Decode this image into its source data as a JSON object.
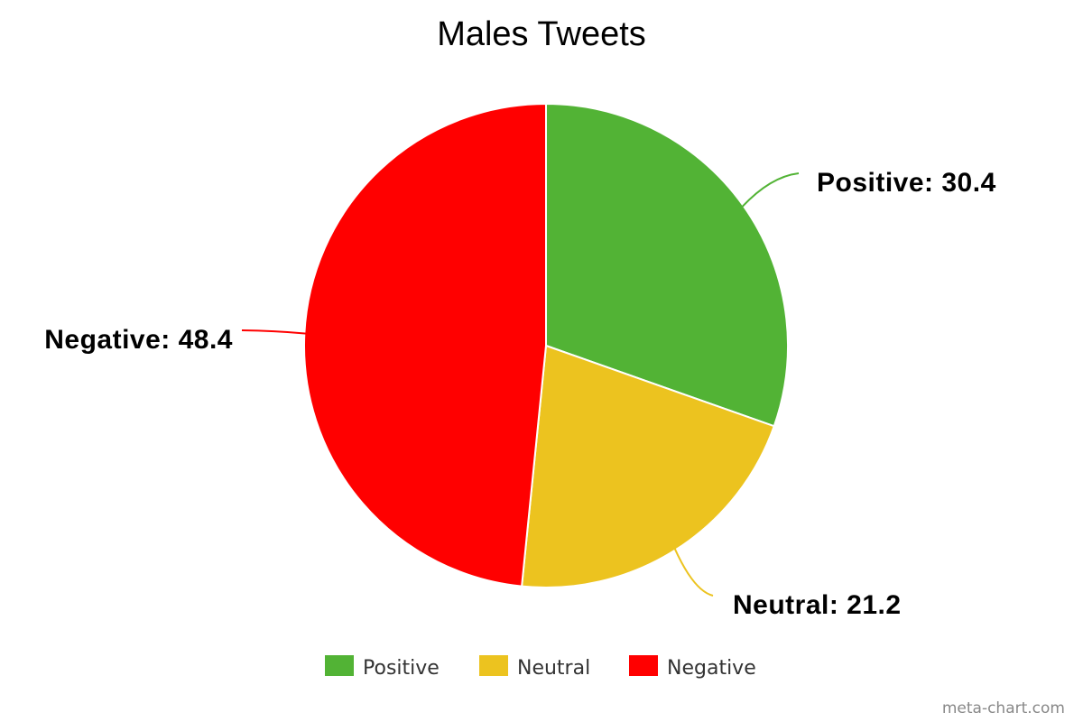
{
  "chart_data": {
    "type": "pie",
    "title": "Males Tweets",
    "slices": [
      {
        "name": "Positive",
        "value": 30.4,
        "color": "#52b335",
        "label": "Positive: 30.4"
      },
      {
        "name": "Neutral",
        "value": 21.2,
        "color": "#ecc31f",
        "label": "Neutral: 21.2"
      },
      {
        "name": "Negative",
        "value": 48.4,
        "color": "#ff0000",
        "label": "Negative: 48.4"
      }
    ],
    "legend_placement": "bottom"
  },
  "credit": "meta-chart.com"
}
